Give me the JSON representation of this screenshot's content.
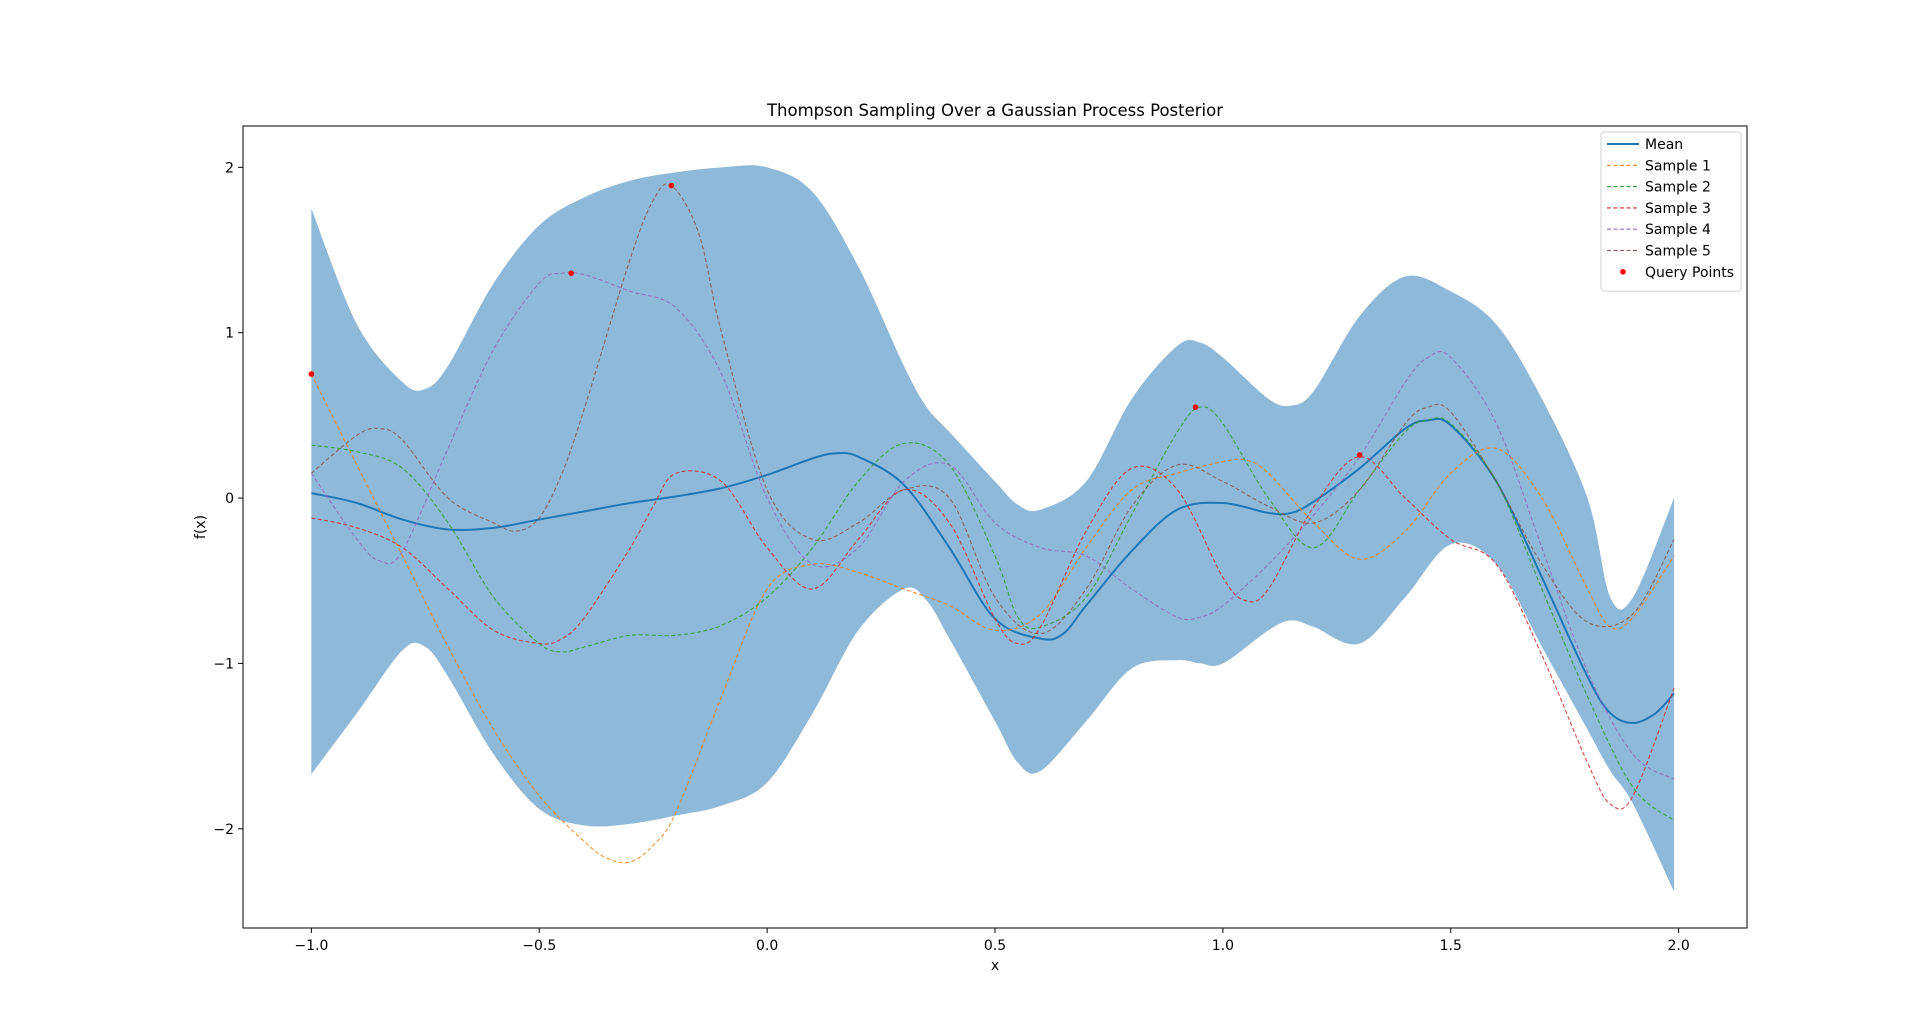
{
  "chart_data": {
    "type": "line",
    "title": "Thompson Sampling Over a Gaussian Process Posterior",
    "xlabel": "x",
    "ylabel": "f(x)",
    "xlim": [
      -1.15,
      2.15
    ],
    "ylim": [
      -2.6,
      2.25
    ],
    "xticks": [
      -1.0,
      -0.5,
      0.0,
      0.5,
      1.0,
      1.5,
      2.0
    ],
    "xtick_labels": [
      "−1.0",
      "−0.5",
      "0.0",
      "0.5",
      "1.0",
      "1.5",
      "2.0"
    ],
    "yticks": [
      -2,
      -1,
      0,
      1,
      2
    ],
    "ytick_labels": [
      "−2",
      "−1",
      "0",
      "1",
      "2"
    ],
    "grid": false,
    "legend_position": "top-right",
    "band": {
      "color": "#8fb9d9",
      "x": [
        -1.0,
        -0.9,
        -0.8,
        -0.75,
        -0.7,
        -0.6,
        -0.5,
        -0.4,
        -0.3,
        -0.2,
        -0.1,
        0.0,
        0.1,
        0.2,
        0.3,
        0.35,
        0.4,
        0.5,
        0.55,
        0.6,
        0.7,
        0.8,
        0.9,
        0.95,
        1.0,
        1.1,
        1.15,
        1.2,
        1.3,
        1.4,
        1.5,
        1.6,
        1.7,
        1.8,
        1.85,
        1.9,
        1.99
      ],
      "upper": [
        1.75,
        1.05,
        0.7,
        0.66,
        0.8,
        1.3,
        1.65,
        1.82,
        1.92,
        1.97,
        2.0,
        2.0,
        1.85,
        1.4,
        0.8,
        0.55,
        0.4,
        0.1,
        -0.04,
        -0.07,
        0.1,
        0.6,
        0.92,
        0.94,
        0.85,
        0.6,
        0.56,
        0.65,
        1.1,
        1.34,
        1.25,
        1.05,
        0.6,
        0.0,
        -0.6,
        -0.6,
        0.0
      ],
      "lower": [
        -1.67,
        -1.3,
        -0.92,
        -0.9,
        -1.08,
        -1.55,
        -1.88,
        -1.98,
        -1.97,
        -1.92,
        -1.86,
        -1.72,
        -1.3,
        -0.8,
        -0.55,
        -0.62,
        -0.85,
        -1.35,
        -1.6,
        -1.65,
        -1.35,
        -1.03,
        -0.98,
        -1.0,
        -1.0,
        -0.8,
        -0.74,
        -0.78,
        -0.88,
        -0.6,
        -0.28,
        -0.4,
        -0.9,
        -1.4,
        -1.65,
        -1.85,
        -2.38
      ]
    },
    "series": [
      {
        "name": "Mean",
        "color": "#1f77b4",
        "dash": false,
        "x": [
          -1.0,
          -0.9,
          -0.8,
          -0.7,
          -0.6,
          -0.5,
          -0.4,
          -0.3,
          -0.2,
          -0.1,
          0.0,
          0.1,
          0.15,
          0.2,
          0.3,
          0.4,
          0.5,
          0.6,
          0.65,
          0.7,
          0.8,
          0.9,
          1.0,
          1.1,
          1.15,
          1.2,
          1.3,
          1.4,
          1.45,
          1.5,
          1.6,
          1.7,
          1.8,
          1.85,
          1.9,
          1.95,
          1.99
        ],
        "y": [
          0.03,
          -0.03,
          -0.13,
          -0.19,
          -0.18,
          -0.13,
          -0.08,
          -0.03,
          0.01,
          0.06,
          0.14,
          0.24,
          0.27,
          0.25,
          0.08,
          -0.3,
          -0.73,
          -0.85,
          -0.82,
          -0.65,
          -0.32,
          -0.07,
          -0.03,
          -0.09,
          -0.09,
          -0.02,
          0.18,
          0.42,
          0.47,
          0.44,
          0.1,
          -0.48,
          -1.08,
          -1.3,
          -1.36,
          -1.3,
          -1.18
        ]
      },
      {
        "name": "Sample 1",
        "color": "#ff7f0e",
        "dash": true,
        "x": [
          -1.0,
          -0.9,
          -0.8,
          -0.7,
          -0.6,
          -0.5,
          -0.4,
          -0.35,
          -0.3,
          -0.25,
          -0.2,
          -0.1,
          0.0,
          0.1,
          0.2,
          0.3,
          0.4,
          0.5,
          0.6,
          0.7,
          0.8,
          0.9,
          1.0,
          1.05,
          1.1,
          1.2,
          1.3,
          1.4,
          1.5,
          1.6,
          1.7,
          1.8,
          1.85,
          1.9,
          1.99
        ],
        "y": [
          0.75,
          0.2,
          -0.35,
          -0.9,
          -1.4,
          -1.8,
          -2.08,
          -2.18,
          -2.2,
          -2.1,
          -1.9,
          -1.2,
          -0.55,
          -0.4,
          -0.45,
          -0.55,
          -0.65,
          -0.8,
          -0.7,
          -0.3,
          0.05,
          0.15,
          0.22,
          0.23,
          0.15,
          -0.15,
          -0.37,
          -0.2,
          0.15,
          0.3,
          0.0,
          -0.55,
          -0.78,
          -0.72,
          -0.35
        ]
      },
      {
        "name": "Sample 2",
        "color": "#2ca02c",
        "dash": true,
        "x": [
          -1.0,
          -0.9,
          -0.8,
          -0.7,
          -0.6,
          -0.5,
          -0.45,
          -0.4,
          -0.3,
          -0.2,
          -0.1,
          0.0,
          0.1,
          0.2,
          0.3,
          0.4,
          0.5,
          0.55,
          0.6,
          0.7,
          0.8,
          0.9,
          0.95,
          1.0,
          1.1,
          1.2,
          1.3,
          1.4,
          1.45,
          1.5,
          1.6,
          1.7,
          1.8,
          1.9,
          1.99
        ],
        "y": [
          0.32,
          0.28,
          0.18,
          -0.15,
          -0.6,
          -0.88,
          -0.93,
          -0.9,
          -0.83,
          -0.83,
          -0.77,
          -0.6,
          -0.3,
          0.1,
          0.33,
          0.2,
          -0.35,
          -0.72,
          -0.78,
          -0.6,
          -0.1,
          0.4,
          0.55,
          0.45,
          0.0,
          -0.3,
          0.05,
          0.4,
          0.47,
          0.45,
          0.1,
          -0.55,
          -1.2,
          -1.75,
          -1.95
        ]
      },
      {
        "name": "Sample 3",
        "color": "#d62728",
        "dash": true,
        "x": [
          -1.0,
          -0.9,
          -0.8,
          -0.7,
          -0.6,
          -0.5,
          -0.45,
          -0.4,
          -0.3,
          -0.25,
          -0.2,
          -0.1,
          0.0,
          0.1,
          0.2,
          0.3,
          0.4,
          0.5,
          0.55,
          0.6,
          0.7,
          0.8,
          0.9,
          1.0,
          1.05,
          1.1,
          1.2,
          1.3,
          1.4,
          1.5,
          1.6,
          1.7,
          1.8,
          1.85,
          1.9,
          1.99
        ],
        "y": [
          -0.12,
          -0.18,
          -0.3,
          -0.55,
          -0.8,
          -0.88,
          -0.85,
          -0.72,
          -0.3,
          -0.05,
          0.15,
          0.1,
          -0.3,
          -0.55,
          -0.25,
          0.05,
          -0.15,
          -0.73,
          -0.88,
          -0.78,
          -0.2,
          0.18,
          0.05,
          -0.48,
          -0.62,
          -0.55,
          -0.05,
          0.25,
          0.0,
          -0.25,
          -0.4,
          -0.95,
          -1.6,
          -1.85,
          -1.8,
          -1.15
        ]
      },
      {
        "name": "Sample 4",
        "color": "#9467bd",
        "dash": true,
        "x": [
          -1.0,
          -0.9,
          -0.85,
          -0.8,
          -0.7,
          -0.6,
          -0.5,
          -0.45,
          -0.4,
          -0.3,
          -0.2,
          -0.1,
          0.0,
          0.1,
          0.2,
          0.3,
          0.4,
          0.5,
          0.6,
          0.7,
          0.8,
          0.9,
          0.95,
          1.0,
          1.1,
          1.2,
          1.3,
          1.4,
          1.45,
          1.5,
          1.6,
          1.7,
          1.8,
          1.9,
          1.99
        ],
        "y": [
          0.15,
          -0.25,
          -0.38,
          -0.32,
          0.3,
          0.9,
          1.3,
          1.36,
          1.35,
          1.25,
          1.15,
          0.75,
          0.0,
          -0.4,
          -0.3,
          0.1,
          0.2,
          -0.15,
          -0.3,
          -0.35,
          -0.55,
          -0.72,
          -0.72,
          -0.65,
          -0.4,
          -0.1,
          0.25,
          0.7,
          0.85,
          0.85,
          0.45,
          -0.3,
          -1.05,
          -1.55,
          -1.7
        ]
      },
      {
        "name": "Sample 5",
        "color": "#8c564b",
        "dash": true,
        "x": [
          -1.0,
          -0.9,
          -0.85,
          -0.8,
          -0.7,
          -0.6,
          -0.55,
          -0.5,
          -0.45,
          -0.4,
          -0.3,
          -0.25,
          -0.21,
          -0.15,
          -0.1,
          0.0,
          0.1,
          0.2,
          0.3,
          0.4,
          0.5,
          0.6,
          0.7,
          0.8,
          0.9,
          1.0,
          1.1,
          1.2,
          1.3,
          1.4,
          1.45,
          1.5,
          1.6,
          1.7,
          1.8,
          1.9,
          1.99
        ],
        "y": [
          0.15,
          0.38,
          0.42,
          0.35,
          0.0,
          -0.15,
          -0.2,
          -0.12,
          0.15,
          0.55,
          1.45,
          1.8,
          1.89,
          1.6,
          1.0,
          0.05,
          -0.25,
          -0.15,
          0.05,
          0.0,
          -0.6,
          -0.82,
          -0.55,
          -0.05,
          0.2,
          0.1,
          -0.05,
          -0.15,
          0.05,
          0.45,
          0.55,
          0.52,
          0.1,
          -0.4,
          -0.75,
          -0.7,
          -0.25
        ]
      }
    ],
    "query_points": {
      "name": "Query Points",
      "color": "#ff0000",
      "x": [
        -1.0,
        -0.43,
        -0.21,
        0.94,
        1.3
      ],
      "y": [
        0.75,
        1.36,
        1.89,
        0.55,
        0.26
      ]
    }
  }
}
